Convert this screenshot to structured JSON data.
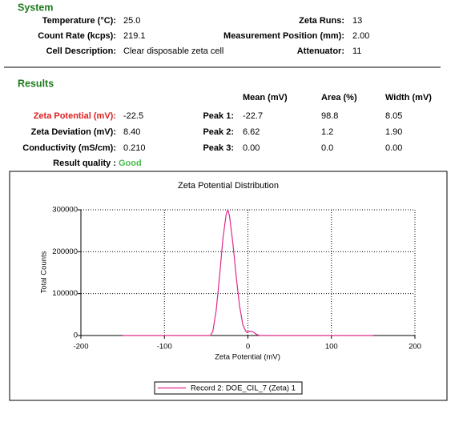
{
  "system": {
    "title": "System",
    "rows": [
      [
        "Temperature (°C):",
        "25.0",
        "Zeta Runs:",
        "13"
      ],
      [
        "Count Rate (kcps):",
        "219.1",
        "Measurement Position (mm):",
        "2.00"
      ],
      [
        "Cell Description:",
        "Clear disposable zeta cell",
        "Attenuator:",
        "11"
      ]
    ]
  },
  "results": {
    "title": "Results",
    "columns": [
      "Mean (mV)",
      "Area (%)",
      "Width (mV)"
    ],
    "rows": [
      [
        "Zeta Potential (mV):",
        "-22.5",
        "Peak 1:",
        "-22.7",
        "98.8",
        "8.05"
      ],
      [
        "Zeta Deviation (mV):",
        "8.40",
        "Peak 2:",
        "6.62",
        "1.2",
        "1.90"
      ],
      [
        "Conductivity (mS/cm):",
        "0.210",
        "Peak 3:",
        "0.00",
        "0.0",
        "0.00"
      ]
    ],
    "quality_label": "Result quality :",
    "quality": "Good"
  },
  "chart_data": {
    "type": "line",
    "title": "Zeta Potential Distribution",
    "x_label": "Zeta Potential (mV)",
    "y_label": "Total Counts",
    "xlim": [
      -200,
      200
    ],
    "ylim": [
      0,
      300000
    ],
    "xticks": [
      -200,
      -100,
      0,
      100,
      200
    ],
    "yticks": [
      0,
      100000,
      200000,
      300000
    ],
    "grid": true,
    "x": [
      -150,
      -45,
      -42,
      -38,
      -34,
      -30,
      -26,
      -24,
      -22,
      -18,
      -14,
      -10,
      -6,
      -2,
      2,
      6,
      10,
      14,
      150
    ],
    "series": [
      {
        "name": "Record 2: DOE_CIL_7 (Zeta) 1",
        "color": "#e0288a",
        "values": [
          0,
          0,
          10000,
          60000,
          140000,
          230000,
          290000,
          300000,
          285000,
          220000,
          140000,
          70000,
          25000,
          8000,
          10000,
          9000,
          3000,
          0,
          0
        ]
      }
    ]
  }
}
